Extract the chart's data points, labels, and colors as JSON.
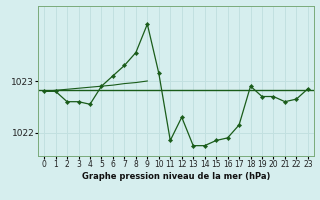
{
  "xlabel": "Graphe pression niveau de la mer (hPa)",
  "bg_color": "#d6eeee",
  "grid_color": "#c2e0e0",
  "line_color": "#1a5c1a",
  "hours": [
    0,
    1,
    2,
    3,
    4,
    5,
    6,
    7,
    8,
    9,
    10,
    11,
    12,
    13,
    14,
    15,
    16,
    17,
    18,
    19,
    20,
    21,
    22,
    23
  ],
  "pressure": [
    1022.8,
    1022.8,
    1022.6,
    1022.6,
    1022.55,
    1022.9,
    1023.1,
    1023.3,
    1023.55,
    1024.1,
    1023.15,
    1021.85,
    1022.3,
    1021.75,
    1021.75,
    1021.85,
    1021.9,
    1022.15,
    1022.9,
    1022.7,
    1022.7,
    1022.6,
    1022.65,
    1022.85
  ],
  "trend": [
    1022.8,
    1022.82,
    1022.84,
    1022.86,
    1022.88,
    1022.9,
    1022.92,
    1022.95,
    1022.97,
    1023.0,
    1023.05,
    1022.82,
    1022.82,
    1022.82,
    1022.82,
    1022.82,
    1022.82,
    1022.82,
    1022.82,
    1022.82,
    1022.82,
    1022.82,
    1022.82,
    1022.82
  ],
  "hline_y": 1022.82,
  "ylim": [
    1021.55,
    1024.45
  ],
  "yticks": [
    1022.0,
    1023.0
  ],
  "ytick_labels": [
    "1022",
    "1023"
  ],
  "xlim": [
    -0.5,
    23.5
  ],
  "xlabel_fontsize": 6.0,
  "tick_fontsize": 5.5,
  "ytick_fontsize": 6.5
}
